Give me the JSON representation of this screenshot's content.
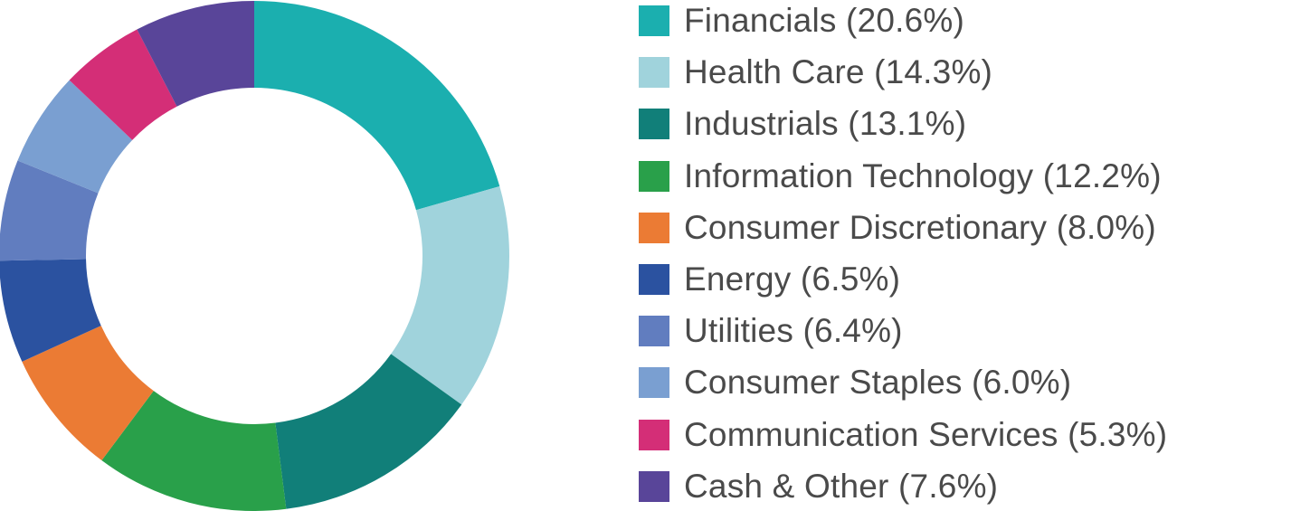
{
  "chart_data": {
    "type": "pie",
    "subtype": "donut",
    "legend_position": "right",
    "series": [
      {
        "name": "Financials",
        "value": 20.6,
        "label": "Financials (20.6%)",
        "color": "#1bafaf"
      },
      {
        "name": "Health Care",
        "value": 14.3,
        "label": "Health Care (14.3%)",
        "color": "#a0d3dc"
      },
      {
        "name": "Industrials",
        "value": 13.1,
        "label": "Industrials (13.1%)",
        "color": "#117f79"
      },
      {
        "name": "Information Technology",
        "value": 12.2,
        "label": "Information Technology (12.2%)",
        "color": "#29a04a"
      },
      {
        "name": "Consumer Discretionary",
        "value": 8.0,
        "label": "Consumer Discretionary (8.0%)",
        "color": "#eb7b34"
      },
      {
        "name": "Energy",
        "value": 6.5,
        "label": "Energy (6.5%)",
        "color": "#2b52a0"
      },
      {
        "name": "Utilities",
        "value": 6.4,
        "label": "Utilities (6.4%)",
        "color": "#617dbf"
      },
      {
        "name": "Consumer Staples",
        "value": 6.0,
        "label": "Consumer Staples (6.0%)",
        "color": "#7a9fd1"
      },
      {
        "name": "Communication Services",
        "value": 5.3,
        "label": "Communication Services (5.3%)",
        "color": "#d42e77"
      },
      {
        "name": "Cash & Other",
        "value": 7.6,
        "label": "Cash & Other (7.6%)",
        "color": "#594599"
      }
    ]
  }
}
